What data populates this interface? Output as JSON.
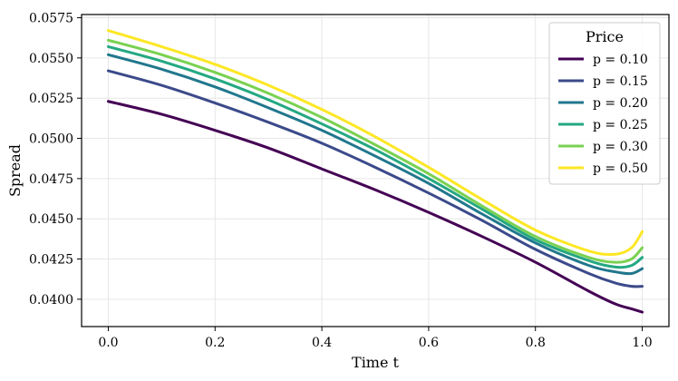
{
  "chart_data": {
    "type": "line",
    "title": "",
    "xlabel": "Time t",
    "ylabel": "Spread",
    "xlim": [
      -0.05,
      1.05
    ],
    "ylim": [
      0.0383,
      0.0577
    ],
    "xticks": [
      0.0,
      0.2,
      0.4,
      0.6,
      0.8,
      1.0
    ],
    "xtick_labels": [
      "0.0",
      "0.2",
      "0.4",
      "0.6",
      "0.8",
      "1.0"
    ],
    "yticks": [
      0.04,
      0.0425,
      0.045,
      0.0475,
      0.05,
      0.0525,
      0.055,
      0.0575
    ],
    "ytick_labels": [
      "0.0400",
      "0.0425",
      "0.0450",
      "0.0475",
      "0.0500",
      "0.0525",
      "0.0550",
      "0.0575"
    ],
    "grid": true,
    "legend": {
      "title": "Price",
      "placement": "top-right"
    },
    "x": [
      0.0,
      0.1,
      0.2,
      0.3,
      0.4,
      0.5,
      0.6,
      0.7,
      0.8,
      0.9,
      0.95,
      0.98,
      1.0
    ],
    "series": [
      {
        "name": "p = 0.10",
        "color": "#440154",
        "values": [
          0.0523,
          0.0515,
          0.0505,
          0.0494,
          0.0481,
          0.0468,
          0.0454,
          0.0439,
          0.0423,
          0.0405,
          0.0397,
          0.0394,
          0.0392
        ]
      },
      {
        "name": "p = 0.15",
        "color": "#3b4a8a",
        "values": [
          0.0542,
          0.0533,
          0.0522,
          0.051,
          0.0497,
          0.0482,
          0.0466,
          0.0449,
          0.0431,
          0.0416,
          0.041,
          0.0408,
          0.0408
        ]
      },
      {
        "name": "p = 0.20",
        "color": "#21778d",
        "values": [
          0.0552,
          0.0543,
          0.0532,
          0.0519,
          0.0505,
          0.0489,
          0.0472,
          0.0453,
          0.0435,
          0.0421,
          0.0417,
          0.0416,
          0.0419
        ]
      },
      {
        "name": "p = 0.25",
        "color": "#24a882",
        "values": [
          0.0557,
          0.0548,
          0.0537,
          0.0524,
          0.0509,
          0.0493,
          0.0475,
          0.0456,
          0.0437,
          0.0424,
          0.042,
          0.0421,
          0.0426
        ]
      },
      {
        "name": "p = 0.30",
        "color": "#7ad151",
        "values": [
          0.0561,
          0.0552,
          0.0541,
          0.0528,
          0.0513,
          0.0496,
          0.0478,
          0.0458,
          0.0439,
          0.0426,
          0.0423,
          0.0425,
          0.0432
        ]
      },
      {
        "name": "p = 0.50",
        "color": "#fde725",
        "values": [
          0.0567,
          0.0557,
          0.0546,
          0.0533,
          0.0518,
          0.0501,
          0.0482,
          0.0462,
          0.0443,
          0.043,
          0.0428,
          0.0432,
          0.0442
        ]
      }
    ]
  }
}
